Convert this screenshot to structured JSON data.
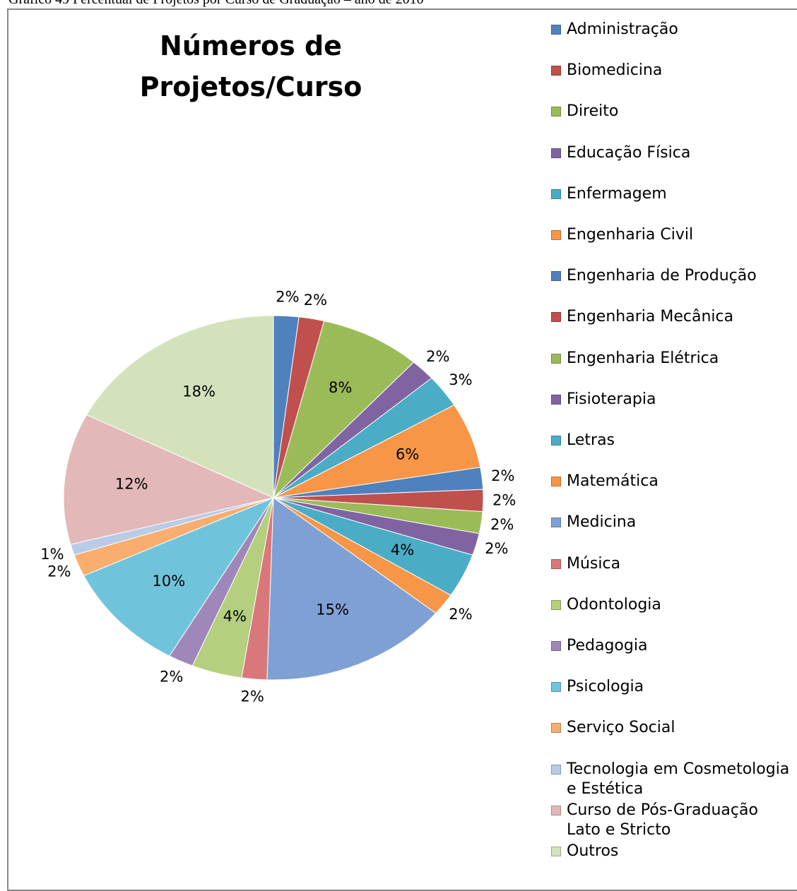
{
  "chart_data": {
    "type": "pie",
    "caption": "Gráfico 49  Percentual de Projetos por Curso de Graduação – ano de 2010",
    "title": "Números de Projetos/Curso",
    "categories": [
      "Administração",
      "Biomedicina",
      "Direito",
      "Educação Física",
      "Enfermagem",
      "Engenharia Civil",
      "Engenharia de Produção",
      "Engenharia Mecânica",
      "Engenharia Elétrica",
      "Fisioterapia",
      "Letras",
      "Matemática",
      "Medicina",
      "Música",
      "Odontologia",
      "Pedagogia",
      "Psicologia",
      "Serviço Social",
      "Tecnologia em Cosmetologia e Estética",
      "Curso de Pós-Graduação Lato e Stricto",
      "Outros"
    ],
    "values": [
      2,
      2,
      8,
      2,
      3,
      6,
      2,
      2,
      2,
      2,
      4,
      2,
      15,
      2,
      4,
      2,
      10,
      2,
      1,
      12,
      18
    ],
    "value_labels": [
      "2%",
      "2%",
      "8%",
      "2%",
      "3%",
      "6%",
      "2%",
      "2%",
      "2%",
      "2%",
      "4%",
      "2%",
      "15%",
      "2%",
      "4%",
      "2%",
      "10%",
      "2%",
      "1%",
      "12%",
      "18%"
    ],
    "colors": [
      "#4F81BD",
      "#C0504D",
      "#9BBB59",
      "#8064A2",
      "#4BACC6",
      "#F79646",
      "#4F81BD",
      "#C0504D",
      "#9BBB59",
      "#8064A2",
      "#4BACC6",
      "#F79646",
      "#7FA0D4",
      "#D9787A",
      "#B4CF7D",
      "#9F87BA",
      "#6FC4DC",
      "#F9AD6E",
      "#B9CBE6",
      "#E3B8B8",
      "#D4E2BC"
    ],
    "legend": "right"
  }
}
